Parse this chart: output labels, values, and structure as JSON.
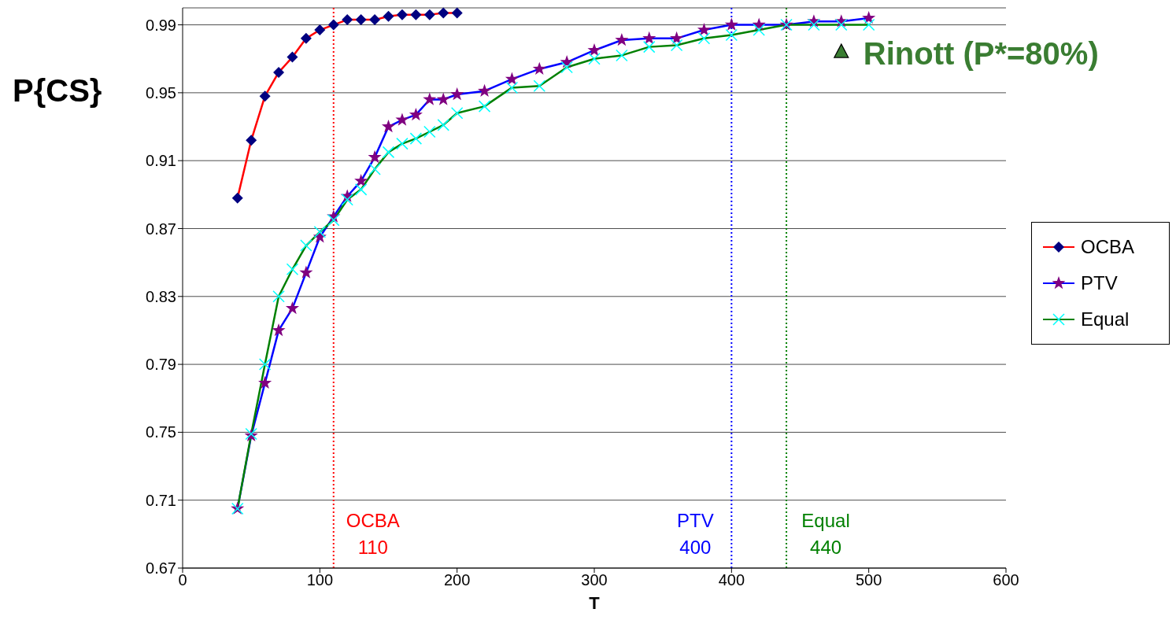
{
  "chart_data": {
    "type": "line",
    "ylabel": "P{CS}",
    "xlabel": "T",
    "xlim": [
      0,
      600
    ],
    "xticks": [
      0,
      100,
      200,
      300,
      400,
      500,
      600
    ],
    "ylim": [
      0.67,
      1.0
    ],
    "yticks": [
      0.67,
      0.71,
      0.75,
      0.79,
      0.83,
      0.87,
      0.91,
      0.95,
      0.99
    ],
    "grid": "y",
    "legend": "right",
    "series": [
      {
        "name": "OCBA",
        "color": "#ff0000",
        "marker": "diamond",
        "colors": [
          "#000080",
          "#000080",
          "#000080",
          "#000080",
          "#000080",
          "#000080",
          "#000080",
          "#000080",
          "#000080",
          "#000080",
          "#000080",
          "#000080",
          "#000080",
          "#000080",
          "#000080",
          "#000080",
          "#000080"
        ],
        "x": [
          40,
          50,
          60,
          70,
          80,
          90,
          100,
          110,
          120,
          130,
          140,
          150,
          160,
          170,
          180,
          190,
          200
        ],
        "values": [
          0.888,
          0.922,
          0.948,
          0.962,
          0.971,
          0.982,
          0.987,
          0.99,
          0.993,
          0.993,
          0.993,
          0.995,
          0.996,
          0.996,
          0.996,
          0.997,
          0.997
        ]
      },
      {
        "name": "PTV",
        "color": "#0000ff",
        "marker": "star",
        "colors": [
          "#800080",
          "#800080",
          "#800080",
          "#800080",
          "#800080",
          "#800080",
          "#800080",
          "#800080",
          "#800080",
          "#800080",
          "#800080",
          "#800080",
          "#800080",
          "#800080",
          "#800080",
          "#800080",
          "#800080",
          "#800080",
          "#800080",
          "#800080",
          "#800080",
          "#800080",
          "#800080",
          "#800080",
          "#800080",
          "#800080",
          "#800080",
          "#800080",
          "#800080",
          "#800080",
          "#800080",
          "#800080"
        ],
        "x": [
          40,
          50,
          60,
          70,
          80,
          90,
          100,
          110,
          120,
          130,
          140,
          150,
          160,
          170,
          180,
          190,
          200,
          220,
          240,
          260,
          280,
          300,
          320,
          340,
          360,
          380,
          400,
          420,
          440,
          460,
          480,
          500
        ],
        "values": [
          0.705,
          0.748,
          0.779,
          0.81,
          0.823,
          0.844,
          0.865,
          0.877,
          0.889,
          0.898,
          0.912,
          0.93,
          0.934,
          0.937,
          0.946,
          0.946,
          0.949,
          0.951,
          0.958,
          0.964,
          0.968,
          0.975,
          0.981,
          0.982,
          0.982,
          0.987,
          0.99,
          0.99,
          0.99,
          0.992,
          0.992,
          0.994
        ]
      },
      {
        "name": "Equal",
        "color": "#008000",
        "marker": "cross",
        "colors": [
          "#00ffff",
          "#00ffff",
          "#00ffff",
          "#00ffff",
          "#00ffff",
          "#00ffff",
          "#00ffff",
          "#00ffff",
          "#00ffff",
          "#00ffff",
          "#00ffff",
          "#00ffff",
          "#00ffff",
          "#00ffff",
          "#00ffff",
          "#00ffff",
          "#00ffff",
          "#00ffff",
          "#00ffff",
          "#00ffff",
          "#00ffff",
          "#00ffff",
          "#00ffff",
          "#00ffff",
          "#00ffff",
          "#00ffff",
          "#00ffff",
          "#00ffff",
          "#00ffff",
          "#00ffff",
          "#00ffff",
          "#00ffff"
        ],
        "x": [
          40,
          50,
          60,
          70,
          80,
          90,
          100,
          110,
          120,
          130,
          140,
          150,
          160,
          170,
          180,
          190,
          200,
          220,
          240,
          260,
          280,
          300,
          320,
          340,
          360,
          380,
          400,
          420,
          440,
          460,
          480,
          500
        ],
        "values": [
          0.705,
          0.749,
          0.79,
          0.83,
          0.846,
          0.86,
          0.868,
          0.875,
          0.887,
          0.893,
          0.905,
          0.915,
          0.92,
          0.923,
          0.927,
          0.931,
          0.938,
          0.942,
          0.953,
          0.954,
          0.965,
          0.97,
          0.972,
          0.977,
          0.978,
          0.982,
          0.984,
          0.987,
          0.99,
          0.99,
          0.99,
          0.99
        ]
      },
      {
        "name": "Rinott (P*=80%)",
        "type": "scatter",
        "color": "#3a7d32",
        "marker": "triangle",
        "x": [
          480
        ],
        "values": [
          0.974
        ]
      }
    ],
    "ref_lines": [
      {
        "axis": "x",
        "value": 110,
        "label": "OCBA\n110",
        "color": "#ff0000",
        "line_style": "dotted"
      },
      {
        "axis": "x",
        "value": 400,
        "label": "PTV\n400",
        "color": "#0000ff",
        "line_style": "dotted"
      },
      {
        "axis": "x",
        "value": 440,
        "label": "Equal\n440",
        "color": "#008000",
        "line_style": "dotted"
      }
    ]
  }
}
